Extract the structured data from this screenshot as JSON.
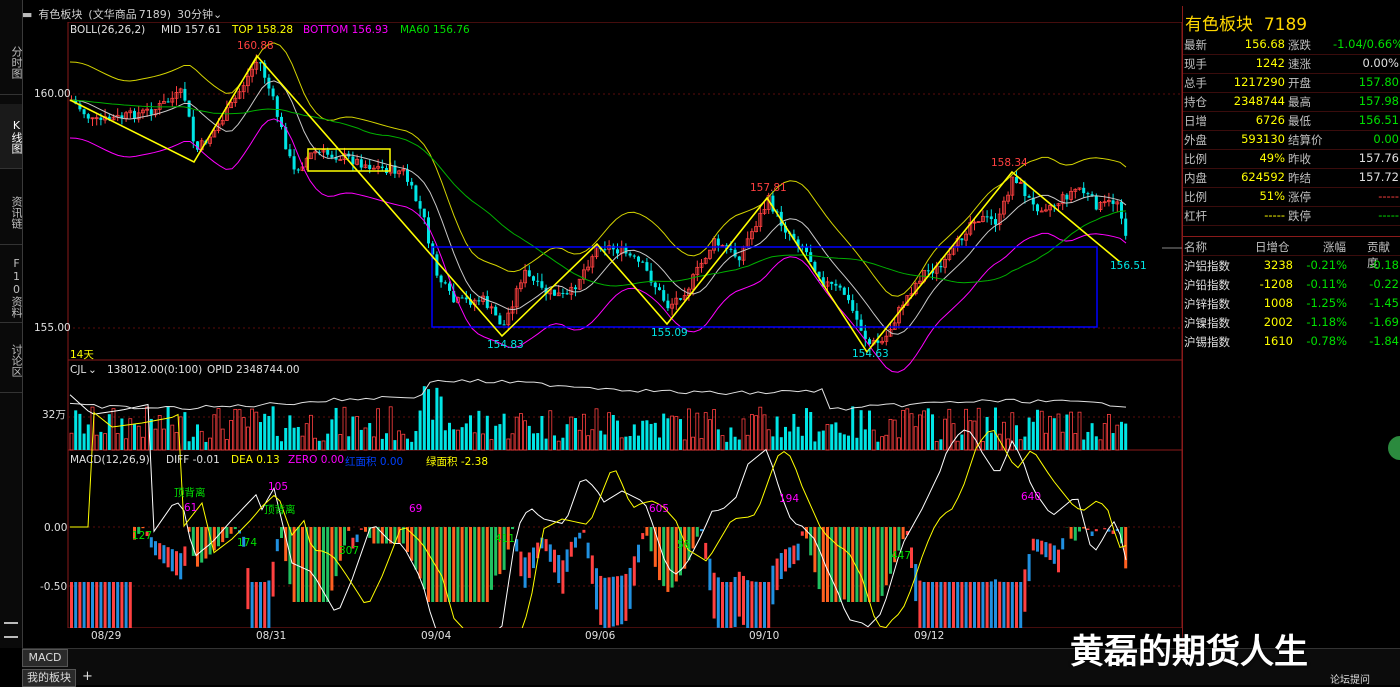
{
  "title_bar": {
    "name": "有色板块",
    "sub": "(文华商品",
    "code": "7189)",
    "period": "30分钟"
  },
  "left_tabs": [
    "分时图",
    "K线图",
    "资讯链",
    "F10资料",
    "讨论区"
  ],
  "main_indicator": {
    "name": "BOLL(26,26,2)",
    "mid": "MID 157.61",
    "top": "TOP 158.28",
    "bottom": "BOTTOM 156.93",
    "ma": "MA60 156.76"
  },
  "price_axis": [
    "160.00",
    "155.00"
  ],
  "annotations": {
    "high1": "160.88",
    "low1": "154.83",
    "low2": "155.09",
    "high2": "157.81",
    "low3": "154.63",
    "high3": "158.34",
    "last": "156.51",
    "days": "14天"
  },
  "volume": {
    "name": "CJL",
    "value": "138012.00(0:100)",
    "opid": "OPID 2348744.00",
    "axis": "32万"
  },
  "macd": {
    "name": "MACD(12,26,9)",
    "diff": "DIFF -0.01",
    "dea": "DEA 0.13",
    "zero": "ZERO 0.00",
    "red_area": "红面积 0.00",
    "green_area": "绿面积 -2.38",
    "axis": [
      "0.00",
      "-0.50"
    ],
    "labels": {
      "top_div1": "顶背离",
      "top_div2": "顶背离",
      "n105": "105",
      "n61": "61",
      "n127": "127",
      "n174": "174",
      "n307": "307",
      "n69": "69",
      "n411": "411",
      "n605": "605",
      "n56": "56",
      "n194": "194",
      "n447": "447",
      "n640": "640"
    }
  },
  "dates": [
    "08/29",
    "08/31",
    "09/04",
    "09/06",
    "09/10",
    "09/12"
  ],
  "quote": {
    "title": "有色板块",
    "code": "7189",
    "rows": [
      {
        "l1": "最新",
        "v1": "156.68",
        "c1": "yl",
        "l2": "涨跌",
        "v2": "-1.04/0.66%",
        "c2": "gr"
      },
      {
        "l1": "现手",
        "v1": "1242",
        "c1": "yl",
        "l2": "速涨",
        "v2": "0.00%",
        "c2": "wh"
      },
      {
        "l1": "总手",
        "v1": "1217290",
        "c1": "yl",
        "l2": "开盘",
        "v2": "157.80",
        "c2": "gr"
      },
      {
        "l1": "持仓",
        "v1": "2348744",
        "c1": "yl",
        "l2": "最高",
        "v2": "157.98",
        "c2": "gr"
      },
      {
        "l1": "日增",
        "v1": "6726",
        "c1": "yl",
        "l2": "最低",
        "v2": "156.51",
        "c2": "gr"
      },
      {
        "l1": "外盘",
        "v1": "593130",
        "c1": "yl",
        "l2": "结算价",
        "v2": "0.00",
        "c2": "gr"
      },
      {
        "l1": "比例",
        "v1": "49%",
        "c1": "yl",
        "l2": "昨收",
        "v2": "157.76",
        "c2": "wh"
      },
      {
        "l1": "内盘",
        "v1": "624592",
        "c1": "yl",
        "l2": "昨结",
        "v2": "157.72",
        "c2": "wh"
      },
      {
        "l1": "比例",
        "v1": "51%",
        "c1": "yl",
        "l2": "涨停",
        "v2": "-----",
        "c2": "rd"
      },
      {
        "l1": "杠杆",
        "v1": "-----",
        "c1": "yl",
        "l2": "跌停",
        "v2": "-----",
        "c2": "gr"
      }
    ]
  },
  "index_table": {
    "headers": [
      "名称",
      "日增仓",
      "涨幅",
      "贡献度"
    ],
    "rows": [
      {
        "name": "沪铝指数",
        "inc": "3238",
        "chg": "-0.21%",
        "contrib": "-0.18"
      },
      {
        "name": "沪铅指数",
        "inc": "-1208",
        "chg": "-0.11%",
        "contrib": "-0.22"
      },
      {
        "name": "沪锌指数",
        "inc": "1008",
        "chg": "-1.25%",
        "contrib": "-1.45"
      },
      {
        "name": "沪镍指数",
        "inc": "2002",
        "chg": "-1.18%",
        "contrib": "-1.69"
      },
      {
        "name": "沪锡指数",
        "inc": "1610",
        "chg": "-0.78%",
        "contrib": "-1.84"
      }
    ]
  },
  "bottom": {
    "macd_tab": "MACD",
    "my_board": "我的板块",
    "plus": "+",
    "forum": "论坛提问"
  },
  "watermark": "黄磊的期货人生",
  "colors": {
    "up": "#ff4040",
    "down": "#00e5e5",
    "boll": "#d4d400",
    "ma60": "#00b000",
    "channel": "#0000ff",
    "zigzag": "#ffff00"
  }
}
